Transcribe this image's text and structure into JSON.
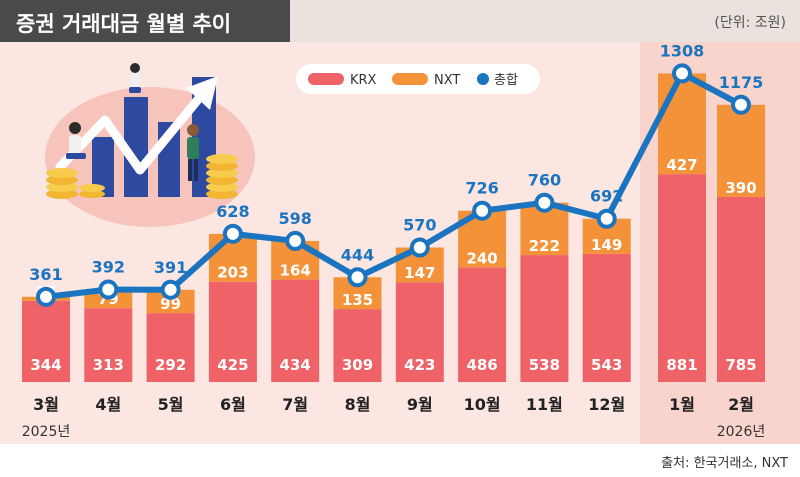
{
  "header": {
    "title": "증권 거래대금 월별 추이",
    "unit": "(단위: 조원)"
  },
  "footer": {
    "source": "출처: 한국거래소, NXT"
  },
  "colors": {
    "krx": "#ee6268",
    "nxt": "#f4923a",
    "total": "#1b74c0",
    "panel": "#fbe6e1",
    "highlight_panel": "#f8d4cc"
  },
  "illustration": "people-with-rising-chart-and-coins",
  "chart_data": {
    "type": "bar",
    "stacked": true,
    "categories": [
      "3월",
      "4월",
      "5월",
      "6월",
      "7월",
      "8월",
      "9월",
      "10월",
      "11월",
      "12월",
      "1월",
      "2월"
    ],
    "year_labels": [
      {
        "label": "2025년",
        "category": "3월"
      },
      {
        "label": "2026년",
        "category": "2월"
      }
    ],
    "highlighted_categories": [
      "1월",
      "2월"
    ],
    "series": [
      {
        "name": "KRX",
        "kind": "bar",
        "values": [
          344,
          313,
          292,
          425,
          434,
          309,
          423,
          486,
          538,
          543,
          881,
          785
        ]
      },
      {
        "name": "NXT",
        "kind": "bar",
        "values": [
          17,
          79,
          99,
          203,
          164,
          135,
          147,
          240,
          222,
          149,
          427,
          390
        ]
      },
      {
        "name": "총합",
        "kind": "line",
        "values": [
          361,
          392,
          391,
          628,
          598,
          444,
          570,
          726,
          760,
          692,
          1308,
          1175
        ]
      }
    ],
    "legend": [
      "KRX",
      "NXT",
      "총합"
    ],
    "legend_position": "top-center",
    "ylim": [
      0,
      1420
    ],
    "grid": false
  }
}
